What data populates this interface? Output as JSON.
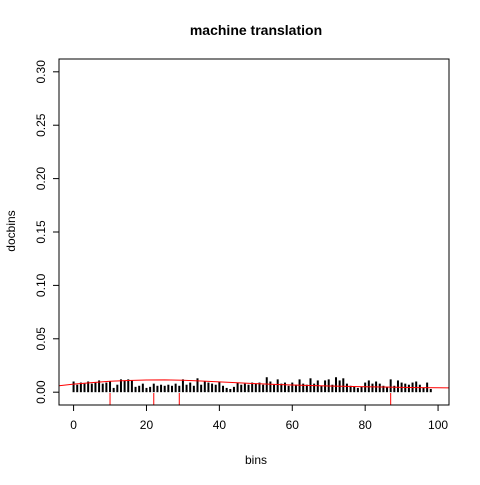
{
  "chart_data": {
    "type": "bar",
    "title": "machine translation",
    "xlabel": "bins",
    "ylabel": "docbins",
    "xlim": [
      -4,
      103
    ],
    "ylim": [
      -0.012,
      0.312
    ],
    "xticks": [
      0,
      20,
      40,
      60,
      80,
      100
    ],
    "xtick_labels": [
      "0",
      "20",
      "40",
      "60",
      "80",
      "100"
    ],
    "yticks": [
      0.0,
      0.05,
      0.1,
      0.15,
      0.2,
      0.25,
      0.3
    ],
    "ytick_labels": [
      "0.00",
      "0.05",
      "0.10",
      "0.15",
      "0.20",
      "0.25",
      "0.30"
    ],
    "bars": {
      "x": [
        0,
        1,
        2,
        3,
        4,
        5,
        6,
        7,
        8,
        9,
        10,
        11,
        12,
        13,
        14,
        15,
        16,
        17,
        18,
        19,
        20,
        21,
        22,
        23,
        24,
        25,
        26,
        27,
        28,
        29,
        30,
        31,
        32,
        33,
        34,
        35,
        36,
        37,
        38,
        39,
        40,
        41,
        42,
        43,
        44,
        45,
        46,
        47,
        48,
        49,
        50,
        51,
        52,
        53,
        54,
        55,
        56,
        57,
        58,
        59,
        60,
        61,
        62,
        63,
        64,
        65,
        66,
        67,
        68,
        69,
        70,
        71,
        72,
        73,
        74,
        75,
        76,
        77,
        78,
        79,
        80,
        81,
        82,
        83,
        84,
        85,
        86,
        87,
        88,
        89,
        90,
        91,
        92,
        93,
        94,
        95,
        96,
        97,
        98
      ],
      "y": [
        0.01,
        0.007,
        0.009,
        0.008,
        0.01,
        0.008,
        0.009,
        0.011,
        0.008,
        0.009,
        0.01,
        0.004,
        0.007,
        0.012,
        0.011,
        0.012,
        0.011,
        0.005,
        0.006,
        0.008,
        0.004,
        0.005,
        0.008,
        0.006,
        0.007,
        0.006,
        0.007,
        0.006,
        0.008,
        0.006,
        0.012,
        0.007,
        0.009,
        0.006,
        0.013,
        0.007,
        0.01,
        0.009,
        0.008,
        0.007,
        0.01,
        0.006,
        0.004,
        0.003,
        0.005,
        0.009,
        0.007,
        0.008,
        0.007,
        0.009,
        0.008,
        0.009,
        0.007,
        0.014,
        0.01,
        0.007,
        0.012,
        0.008,
        0.009,
        0.006,
        0.009,
        0.007,
        0.012,
        0.008,
        0.007,
        0.013,
        0.008,
        0.011,
        0.006,
        0.011,
        0.012,
        0.007,
        0.014,
        0.011,
        0.013,
        0.008,
        0.006,
        0.005,
        0.004,
        0.005,
        0.009,
        0.011,
        0.008,
        0.01,
        0.008,
        0.006,
        0.005,
        0.012,
        0.006,
        0.011,
        0.009,
        0.008,
        0.007,
        0.009,
        0.01,
        0.007,
        0.004,
        0.009,
        0.003
      ]
    },
    "curve": {
      "color": "#ff0000",
      "x": [
        -4,
        0,
        5,
        10,
        15,
        20,
        25,
        30,
        35,
        40,
        45,
        50,
        55,
        60,
        65,
        70,
        75,
        80,
        85,
        90,
        95,
        100,
        103
      ],
      "y": [
        0.006,
        0.0075,
        0.009,
        0.0102,
        0.011,
        0.0114,
        0.0115,
        0.0112,
        0.0105,
        0.0097,
        0.0088,
        0.008,
        0.0073,
        0.0067,
        0.0062,
        0.0058,
        0.0054,
        0.0051,
        0.0048,
        0.0045,
        0.0043,
        0.0041,
        0.004
      ]
    },
    "markers": {
      "color": "#ff0000",
      "x": [
        10,
        22,
        29,
        87
      ]
    },
    "bar_color": "#000000",
    "grid": false
  }
}
